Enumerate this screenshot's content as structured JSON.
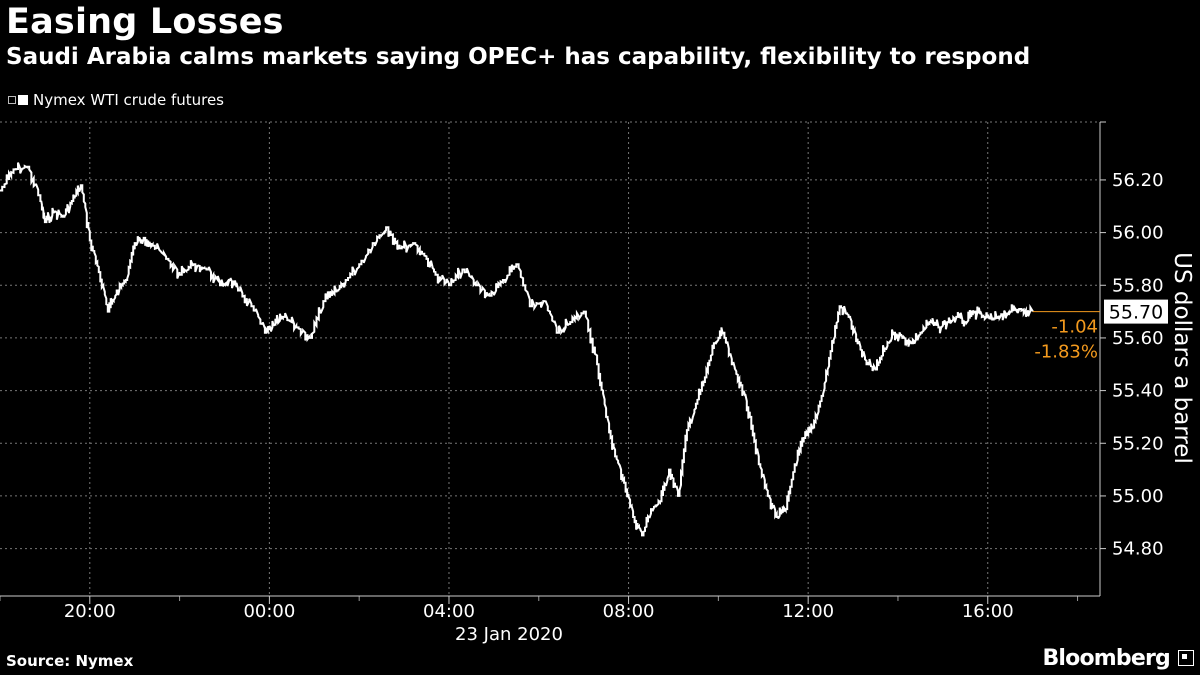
{
  "header": {
    "title": "Easing Losses",
    "subtitle": "Saudi Arabia calms markets saying OPEC+ has capability, flexibility to respond"
  },
  "footer": {
    "source": "Source: Nymex",
    "brand": "Bloomberg"
  },
  "colors": {
    "background": "#000000",
    "line": "#ffffff",
    "grid": "#777777",
    "change": "#f39a1e"
  },
  "chart_data": {
    "type": "line",
    "title": "Easing Losses",
    "subtitle": "Saudi Arabia calms markets saying OPEC+ has capability, flexibility to respond",
    "ylabel": "US dollars a barrel",
    "xlabel": "",
    "date_label": "23 Jan 2020",
    "x_tick_labels": [
      "20:00",
      "00:00",
      "04:00",
      "08:00",
      "12:00",
      "16:00"
    ],
    "x_tick_hours": [
      20,
      24,
      28,
      32,
      36,
      40
    ],
    "xlim_hours": [
      18.0,
      42.5
    ],
    "ylim": [
      54.62,
      56.42
    ],
    "y_ticks": [
      54.8,
      55.0,
      55.2,
      55.4,
      55.6,
      55.8,
      56.0,
      56.2
    ],
    "y_tick_labels": [
      "54.80",
      "55.00",
      "55.20",
      "55.40",
      "55.60",
      "55.80",
      "56.00",
      "56.20"
    ],
    "grid": true,
    "legend_position": "top-left",
    "last_value": "55.70",
    "change": "-1.04",
    "change_pct": "-1.83%",
    "series": [
      {
        "name": "Nymex WTI crude futures",
        "x_hours": [
          18.0,
          18.3,
          18.6,
          18.9,
          19.0,
          19.2,
          19.4,
          19.6,
          19.8,
          20.0,
          20.2,
          20.4,
          20.6,
          20.8,
          21.0,
          21.2,
          21.4,
          21.7,
          22.0,
          22.3,
          22.6,
          22.9,
          23.1,
          23.3,
          23.6,
          23.9,
          24.1,
          24.3,
          24.6,
          24.9,
          25.2,
          25.5,
          25.7,
          26.0,
          26.3,
          26.6,
          26.9,
          27.2,
          27.5,
          27.7,
          28.0,
          28.3,
          28.6,
          28.9,
          29.2,
          29.5,
          29.8,
          30.1,
          30.4,
          30.7,
          31.0,
          31.3,
          31.5,
          31.7,
          31.9,
          32.1,
          32.3,
          32.5,
          32.7,
          32.9,
          33.1,
          33.3,
          33.5,
          33.7,
          33.9,
          34.1,
          34.3,
          34.5,
          34.7,
          34.9,
          35.1,
          35.3,
          35.5,
          35.7,
          35.9,
          36.1,
          36.3,
          36.5,
          36.7,
          36.9,
          37.1,
          37.3,
          37.5,
          37.7,
          37.9,
          38.1,
          38.3,
          38.5,
          38.7,
          38.9,
          39.1,
          39.3,
          39.5,
          39.7,
          39.9,
          40.1,
          40.3,
          40.5,
          40.7,
          41.0
        ],
        "values": [
          56.16,
          56.24,
          56.25,
          56.12,
          56.04,
          56.08,
          56.06,
          56.12,
          56.18,
          55.97,
          55.85,
          55.7,
          55.78,
          55.82,
          55.96,
          55.98,
          55.95,
          55.9,
          55.84,
          55.88,
          55.86,
          55.8,
          55.82,
          55.78,
          55.72,
          55.62,
          55.65,
          55.68,
          55.64,
          55.6,
          55.74,
          55.78,
          55.82,
          55.88,
          55.96,
          56.02,
          55.94,
          55.96,
          55.9,
          55.84,
          55.8,
          55.86,
          55.8,
          55.76,
          55.82,
          55.88,
          55.72,
          55.74,
          55.62,
          55.66,
          55.7,
          55.5,
          55.3,
          55.15,
          55.05,
          54.92,
          54.85,
          54.95,
          54.98,
          55.1,
          55.0,
          55.25,
          55.35,
          55.45,
          55.58,
          55.62,
          55.5,
          55.42,
          55.3,
          55.12,
          55.0,
          54.92,
          54.95,
          55.12,
          55.22,
          55.26,
          55.38,
          55.55,
          55.72,
          55.68,
          55.58,
          55.5,
          55.48,
          55.56,
          55.62,
          55.6,
          55.58,
          55.62,
          55.66,
          55.64,
          55.66,
          55.68,
          55.66,
          55.7,
          55.68,
          55.67,
          55.69,
          55.7,
          55.71,
          55.7
        ]
      }
    ]
  }
}
